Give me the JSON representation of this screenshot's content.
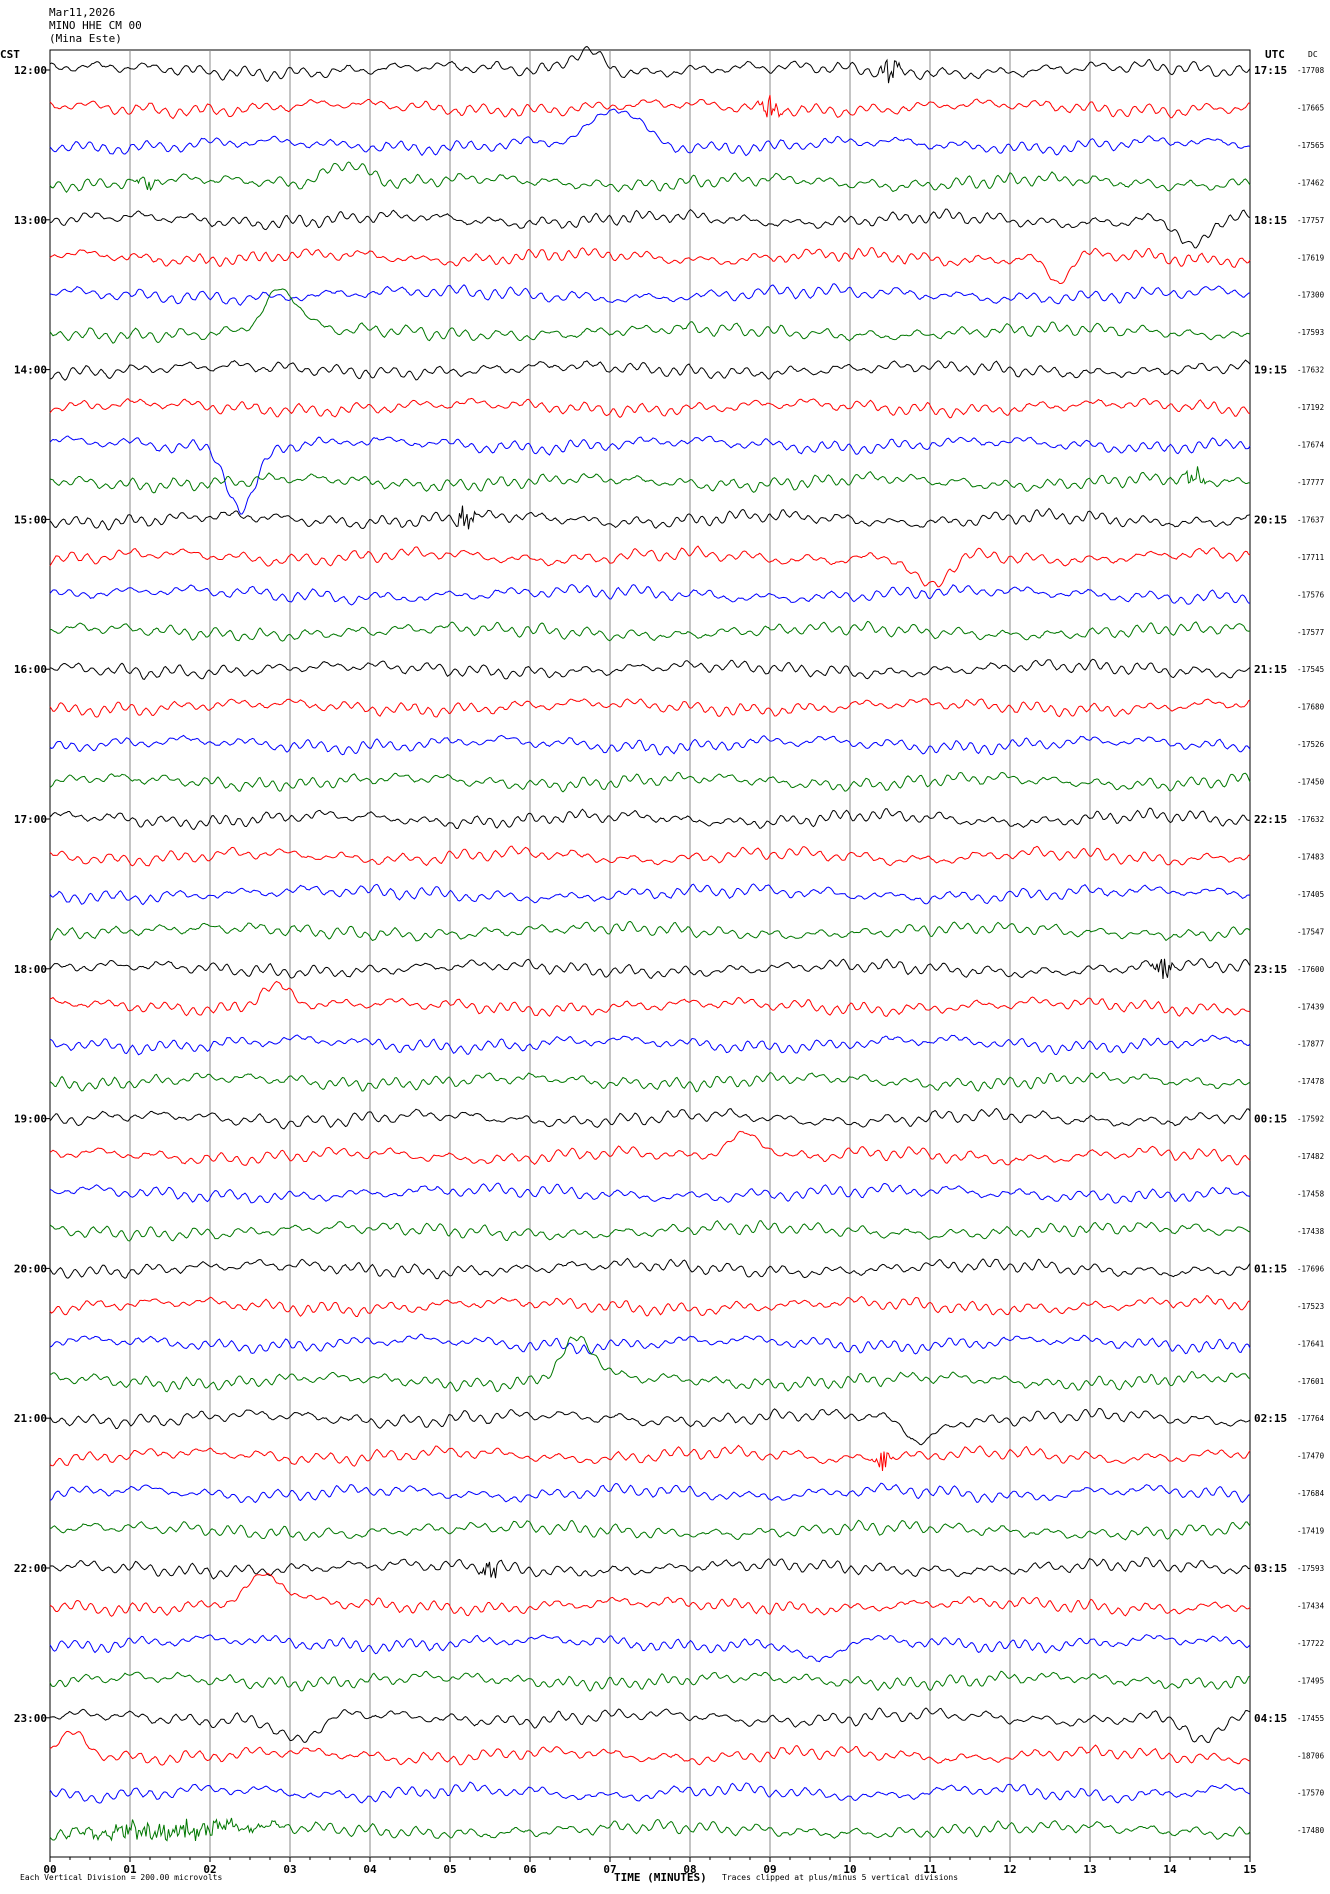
{
  "header": {
    "date": "Mar11,2026",
    "station": "MINO HHE CM 00",
    "site": "(Mina Este)",
    "left_zone": "CST",
    "right_zone": "UTC",
    "dc_label": "DC"
  },
  "chart_data": {
    "type": "line",
    "subtype": "helicorder",
    "rows_per_hour": 4,
    "minutes_per_row": 15,
    "trace_colors": [
      "#000000",
      "#ff0000",
      "#0000ff",
      "#007700"
    ],
    "grid_color": "#888888",
    "x_ticks": [
      "00",
      "01",
      "02",
      "03",
      "04",
      "05",
      "06",
      "07",
      "08",
      "09",
      "10",
      "11",
      "12",
      "13",
      "14",
      "15"
    ],
    "xlabel": "TIME (MINUTES)",
    "left_hour_labels": [
      "12:00",
      "13:00",
      "14:00",
      "15:00",
      "16:00",
      "17:00",
      "18:00",
      "19:00",
      "20:00",
      "21:00",
      "22:00",
      "23:00"
    ],
    "right_hour_labels": [
      "17:15",
      "18:15",
      "19:15",
      "20:15",
      "21:15",
      "22:15",
      "23:15",
      "00:15",
      "01:15",
      "02:15",
      "03:15",
      "04:15"
    ],
    "dc_offsets": [
      "-17708",
      "-17665",
      "-17565",
      "-17462",
      "-17757",
      "-17619",
      "-17300",
      "-17593",
      "-17632",
      "-17192",
      "-17674",
      "-17777",
      "-17637",
      "-17711",
      "-17576",
      "-17577",
      "-17545",
      "-17680",
      "-17526",
      "-17450",
      "-17632",
      "-17483",
      "-17405",
      "-17547",
      "-17600",
      "-17439",
      "-17877",
      "-17478",
      "-17592",
      "-17482",
      "-17458",
      "-17438",
      "-17696",
      "-17523",
      "-17641",
      "-17601",
      "-17764",
      "-17470",
      "-17684",
      "-17419",
      "-17593",
      "-17434",
      "-17722",
      "-17495",
      "-17455",
      "-18706",
      "-17570",
      "-17480"
    ],
    "events": [
      {
        "row": 0,
        "minute": 6.7,
        "amp": 1.0,
        "width": 0.3,
        "kind": "bump"
      },
      {
        "row": 0,
        "minute": 10.5,
        "amp": 0.6,
        "width": 0.1,
        "kind": "burst"
      },
      {
        "row": 1,
        "minute": 9.0,
        "amp": 0.5,
        "width": 0.1,
        "kind": "burst"
      },
      {
        "row": 2,
        "minute": 7.1,
        "amp": 1.6,
        "width": 0.4,
        "kind": "bump"
      },
      {
        "row": 3,
        "minute": 1.2,
        "amp": 0.5,
        "width": 0.1,
        "kind": "burst"
      },
      {
        "row": 3,
        "minute": 3.7,
        "amp": 1.0,
        "width": 0.35,
        "kind": "bump"
      },
      {
        "row": 4,
        "minute": 14.3,
        "amp": 1.4,
        "width": 0.25,
        "kind": "dip"
      },
      {
        "row": 5,
        "minute": 12.6,
        "amp": 1.2,
        "width": 0.2,
        "kind": "dip"
      },
      {
        "row": 7,
        "minute": 2.9,
        "amp": 1.8,
        "width": 0.3,
        "kind": "bump"
      },
      {
        "row": 10,
        "minute": 2.4,
        "amp": 2.8,
        "width": 0.25,
        "kind": "dip"
      },
      {
        "row": 11,
        "minute": 14.3,
        "amp": 0.5,
        "width": 0.1,
        "kind": "burst"
      },
      {
        "row": 12,
        "minute": 5.2,
        "amp": 0.6,
        "width": 0.1,
        "kind": "burst"
      },
      {
        "row": 13,
        "minute": 11.0,
        "amp": 1.5,
        "width": 0.3,
        "kind": "dip"
      },
      {
        "row": 24,
        "minute": 13.9,
        "amp": 0.6,
        "width": 0.1,
        "kind": "burst"
      },
      {
        "row": 25,
        "minute": 2.8,
        "amp": 1.0,
        "width": 0.3,
        "kind": "bump"
      },
      {
        "row": 29,
        "minute": 8.7,
        "amp": 1.1,
        "width": 0.35,
        "kind": "bump"
      },
      {
        "row": 35,
        "minute": 6.6,
        "amp": 1.8,
        "width": 0.3,
        "kind": "bump"
      },
      {
        "row": 36,
        "minute": 10.9,
        "amp": 1.0,
        "width": 0.25,
        "kind": "dip"
      },
      {
        "row": 37,
        "minute": 10.4,
        "amp": 0.5,
        "width": 0.1,
        "kind": "burst"
      },
      {
        "row": 40,
        "minute": 5.5,
        "amp": 0.5,
        "width": 0.1,
        "kind": "burst"
      },
      {
        "row": 41,
        "minute": 2.7,
        "amp": 1.2,
        "width": 0.35,
        "kind": "bump"
      },
      {
        "row": 42,
        "minute": 9.6,
        "amp": 1.0,
        "width": 0.3,
        "kind": "dip"
      },
      {
        "row": 44,
        "minute": 3.1,
        "amp": 1.1,
        "width": 0.3,
        "kind": "dip"
      },
      {
        "row": 44,
        "minute": 14.4,
        "amp": 1.3,
        "width": 0.25,
        "kind": "dip"
      },
      {
        "row": 45,
        "minute": 0.3,
        "amp": 0.9,
        "width": 0.25,
        "kind": "bump"
      },
      {
        "row": 47,
        "minute": 1.5,
        "amp": 0.4,
        "width": 0.9,
        "kind": "burst"
      }
    ]
  },
  "footer": {
    "scale": "Each Vertical Division =  200.00 microvolts",
    "time_label": "TIME (MINUTES)",
    "clip_note": "Traces clipped at plus/minus 5 vertical divisions"
  }
}
